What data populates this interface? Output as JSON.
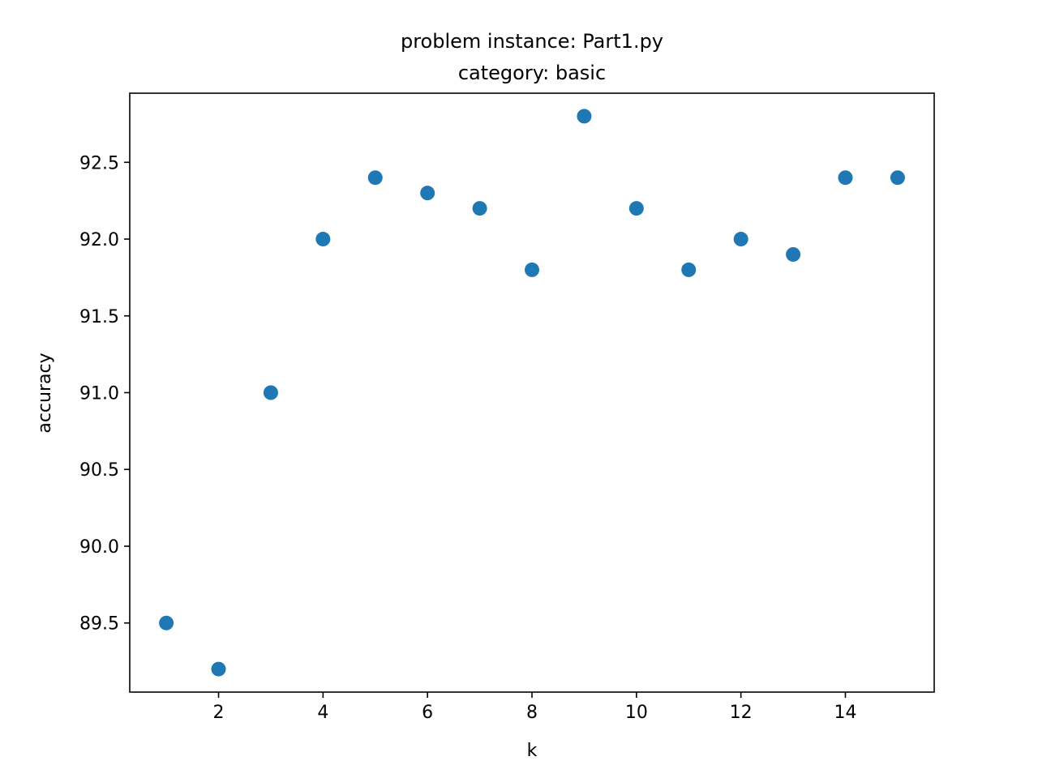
{
  "chart_data": {
    "type": "scatter",
    "title": "problem instance: Part1.py",
    "subtitle": "category: basic",
    "xlabel": "k",
    "ylabel": "accuracy",
    "xlim": [
      0.3,
      15.7
    ],
    "ylim": [
      89.05,
      92.95
    ],
    "xticks": [
      2,
      4,
      6,
      8,
      10,
      12,
      14
    ],
    "xtick_labels": [
      "2",
      "4",
      "6",
      "8",
      "10",
      "12",
      "14"
    ],
    "yticks": [
      89.5,
      90.0,
      90.5,
      91.0,
      91.5,
      92.0,
      92.5
    ],
    "ytick_labels": [
      "89.5",
      "90.0",
      "90.5",
      "91.0",
      "91.5",
      "92.0",
      "92.5"
    ],
    "grid": false,
    "marker_color": "#1f77b4",
    "series": [
      {
        "x": [
          1,
          2,
          3,
          4,
          5,
          6,
          7,
          8,
          9,
          10,
          11,
          12,
          13,
          14,
          15
        ],
        "y": [
          89.5,
          89.2,
          91.0,
          92.0,
          92.4,
          92.3,
          92.2,
          91.8,
          92.8,
          92.2,
          91.8,
          92.0,
          91.9,
          92.4,
          92.4
        ]
      }
    ]
  }
}
